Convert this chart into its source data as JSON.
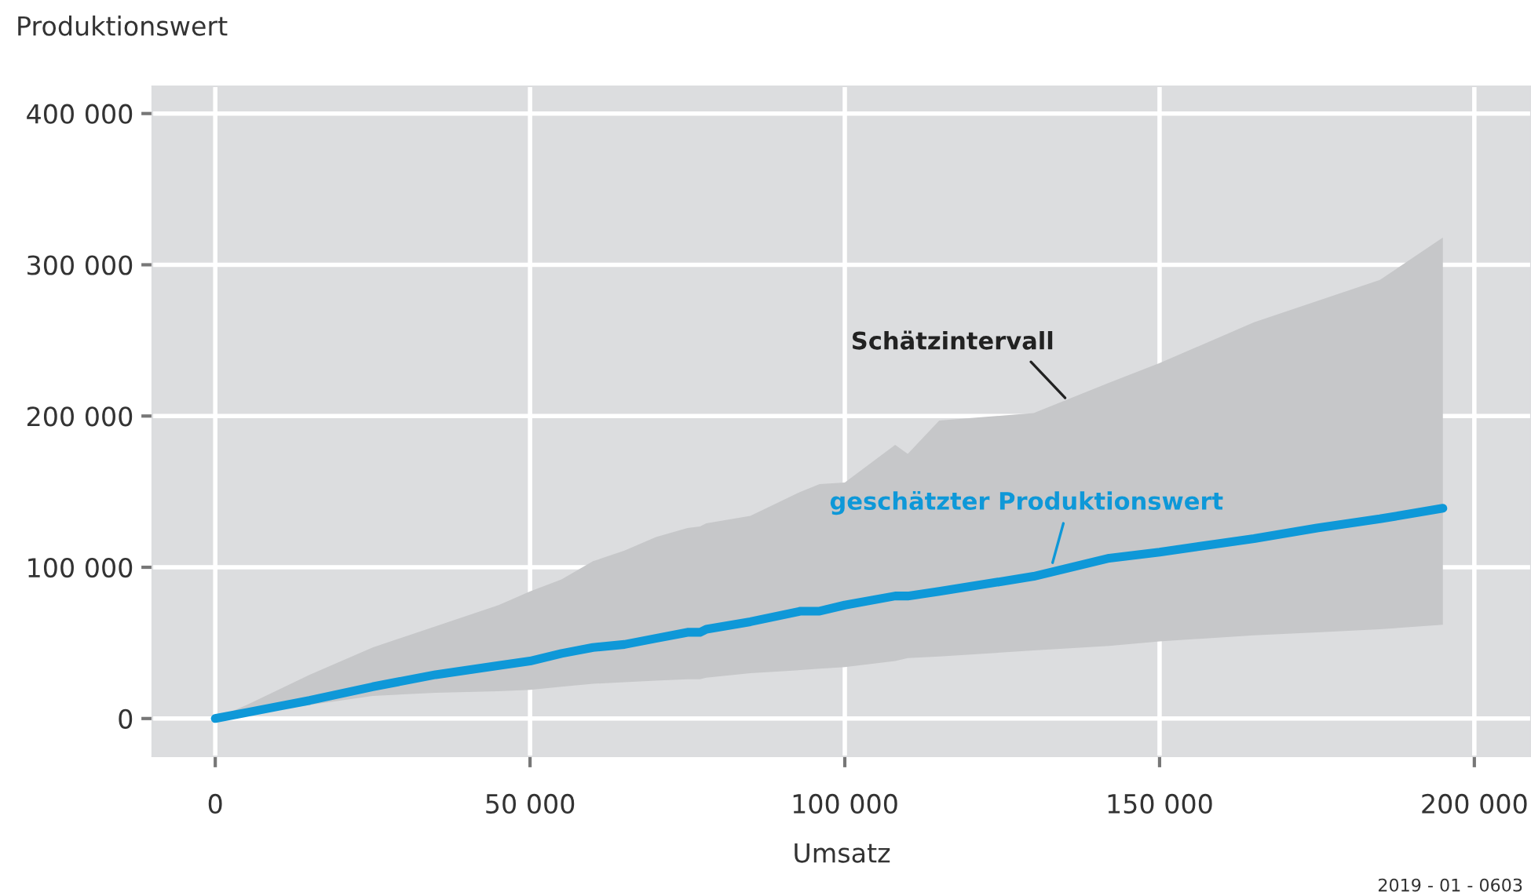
{
  "chart_data": {
    "type": "line",
    "ylabel": "Produktionswert",
    "xlabel": "Umsatz",
    "x": [
      0,
      5000,
      10000,
      15000,
      25000,
      35000,
      45000,
      50000,
      55000,
      60000,
      65000,
      70000,
      75000,
      77000,
      78000,
      85000,
      93000,
      96000,
      100000,
      108000,
      110000,
      115000,
      130000,
      142000,
      150000,
      165000,
      175000,
      185000,
      195000
    ],
    "series": [
      {
        "color": "#0e98d8",
        "values": [
          0,
          4000,
          8000,
          12000,
          21000,
          29000,
          35000,
          38000,
          43000,
          47000,
          49000,
          53000,
          57000,
          57000,
          59000,
          64000,
          71000,
          71000,
          75000,
          81000,
          81000,
          84000,
          94000,
          106000,
          110000,
          119000,
          126000,
          132000,
          139000
        ],
        "upper": [
          0,
          9000,
          19000,
          29000,
          47000,
          61000,
          75000,
          84000,
          92000,
          104000,
          111000,
          120000,
          126000,
          127000,
          129000,
          134000,
          150000,
          155000,
          156000,
          181000,
          175000,
          197000,
          202000,
          222000,
          235000,
          262000,
          276000,
          290000,
          318000
        ],
        "lower": [
          0,
          3000,
          6000,
          9000,
          15000,
          17000,
          18000,
          19000,
          21000,
          23000,
          24000,
          25000,
          26000,
          26000,
          27000,
          30000,
          32000,
          33000,
          34000,
          38000,
          40000,
          41000,
          45000,
          48000,
          51000,
          55000,
          57000,
          59000,
          62000
        ]
      }
    ],
    "xlim": [
      -10000,
      209000
    ],
    "ylim": [
      -25000,
      418000
    ],
    "xticks": [
      {
        "value": 0,
        "label": "0"
      },
      {
        "value": 50000,
        "label": "50 000"
      },
      {
        "value": 100000,
        "label": "100 000"
      },
      {
        "value": 150000,
        "label": "150 000"
      },
      {
        "value": 200000,
        "label": "200 000"
      }
    ],
    "yticks": [
      {
        "value": 0,
        "label": "0"
      },
      {
        "value": 100000,
        "label": "100 000"
      },
      {
        "value": 200000,
        "label": "200 000"
      },
      {
        "value": 300000,
        "label": "300 000"
      },
      {
        "value": 400000,
        "label": "400 000"
      }
    ],
    "grid": true,
    "marker": "none",
    "line_style": "solid",
    "annotations": [
      {
        "text": "Schätzintervall",
        "x": 135000,
        "y": 212000
      },
      {
        "text": "geschätzter Produktionswert",
        "x": 133000,
        "y": 103000
      },
      "2019 - 01 - 0603"
    ]
  }
}
